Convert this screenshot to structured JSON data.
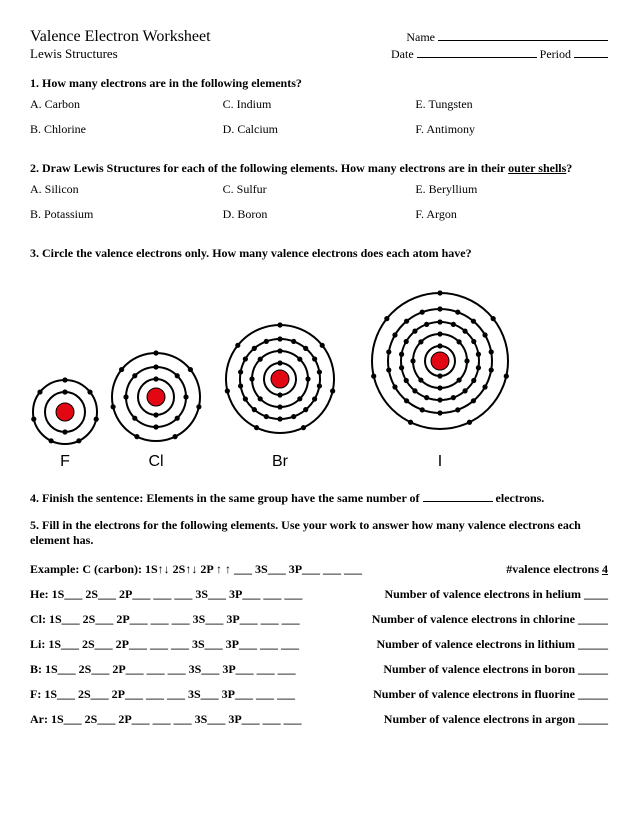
{
  "header": {
    "title": "Valence Electron Worksheet",
    "subtitle": "Lewis Structures",
    "name_label": "Name",
    "date_label": "Date",
    "period_label": "Period"
  },
  "q1": {
    "prompt": "1.  How many electrons are in the following elements?",
    "items": {
      "a": "A.  Carbon",
      "b": "B.  Chlorine",
      "c": "C.  Indium",
      "d": "D.  Calcium",
      "e": "E.  Tungsten",
      "f": "F.  Antimony"
    }
  },
  "q2": {
    "prompt_a": "2.  Draw Lewis Structures for each of the following ",
    "prompt_b": "elements. How many electrons are in their ",
    "prompt_c": "outer shells",
    "items": {
      "a": "A.  Silicon",
      "b": "B.  Potassium",
      "c": "C.  Sulfur",
      "d": "D.  Boron",
      "e": "E.  Beryllium",
      "f": "F.  Argon"
    }
  },
  "q3": {
    "prompt_a": "3.  Circle the valence electrons only. ",
    "prompt_b": "How many valence electrons does each atom have?"
  },
  "atoms": {
    "colors": {
      "nucleus": "#e30613",
      "electron": "#000000",
      "ring": "#000000",
      "bg": "#ffffff"
    },
    "ring_stroke": 2,
    "electron_r": 2.6,
    "list": [
      {
        "label": "F",
        "size": 70,
        "nucleus_r": 9,
        "shells": [
          {
            "r": 20,
            "n": 2
          },
          {
            "r": 32,
            "n": 7
          }
        ]
      },
      {
        "label": "Cl",
        "size": 100,
        "nucleus_r": 9,
        "shells": [
          {
            "r": 18,
            "n": 2
          },
          {
            "r": 30,
            "n": 8
          },
          {
            "r": 44,
            "n": 7
          }
        ]
      },
      {
        "label": "Br",
        "size": 136,
        "nucleus_r": 9,
        "shells": [
          {
            "r": 16,
            "n": 2
          },
          {
            "r": 28,
            "n": 8
          },
          {
            "r": 40,
            "n": 18
          },
          {
            "r": 54,
            "n": 7
          }
        ]
      },
      {
        "label": "I",
        "size": 172,
        "nucleus_r": 9,
        "shells": [
          {
            "r": 15,
            "n": 2
          },
          {
            "r": 27,
            "n": 8
          },
          {
            "r": 39,
            "n": 18
          },
          {
            "r": 52,
            "n": 18
          },
          {
            "r": 68,
            "n": 7
          }
        ]
      }
    ]
  },
  "q4": {
    "a": "4. Finish the sentence: Elements in the same group have the same number of ",
    "b": " electrons."
  },
  "q5": {
    "text": "5. Fill in the electrons for the following elements. Use your work to answer how many valence electrons each element has."
  },
  "example": {
    "left": "Example: C (carbon): 1S",
    "s2": "  2S",
    "p2": "  2P",
    "rest": " ___  3S___ 3P___ ___ ___",
    "right_a": "#valence electrons ",
    "right_b": "  4  "
  },
  "configs": [
    {
      "left": "He: 1S___ 2S___ 2P___ ___ ___ 3S___ 3P___ ___ ___",
      "right": "Number of valence electrons in helium ____"
    },
    {
      "left": "Cl: 1S___ 2S___ 2P___ ___ ___ 3S___ 3P___ ___ ___",
      "right": "Number of valence electrons in chlorine _____"
    },
    {
      "left": "Li: 1S___ 2S___ 2P___ ___ ___ 3S___ 3P___ ___ ___",
      "right": "Number of valence electrons in lithium _____"
    },
    {
      "left": "B: 1S___ 2S___ 2P___ ___ ___ 3S___ 3P___ ___ ___",
      "right": "Number of valence electrons in boron _____"
    },
    {
      "left": "F: 1S___ 2S___ 2P___ ___ ___ 3S___ 3P___ ___ ___",
      "right": "Number of valence electrons in fluorine _____"
    },
    {
      "left": "Ar: 1S___ 2S___ 2P___ ___ ___ 3S___ 3P___ ___ ___",
      "right": "Number of valence electrons in argon _____"
    }
  ]
}
